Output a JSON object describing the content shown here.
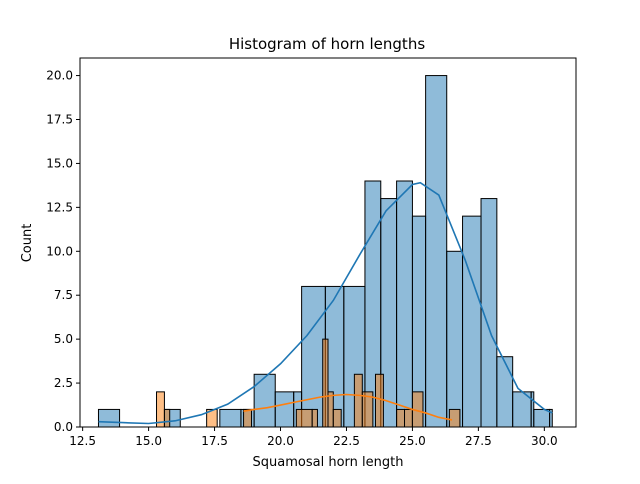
{
  "chart_data": {
    "type": "bar",
    "title": "Histogram of horn lengths",
    "xlabel": "Squamosal horn length",
    "ylabel": "Count",
    "xlim": [
      12.4,
      31.2
    ],
    "ylim": [
      0,
      21
    ],
    "xticks": [
      "12.5",
      "15.0",
      "17.5",
      "20.0",
      "22.5",
      "25.0",
      "27.5",
      "30.0"
    ],
    "yticks": [
      "0.0",
      "2.5",
      "5.0",
      "7.5",
      "10.0",
      "12.5",
      "15.0",
      "17.5",
      "20.0"
    ],
    "grid": false,
    "legend": "none",
    "series": [
      {
        "color": "#1f77b4",
        "bins": [
          {
            "x0": 13.1,
            "x1": 13.9,
            "count": 1
          },
          {
            "x0": 15.6,
            "x1": 16.2,
            "count": 1
          },
          {
            "x0": 17.7,
            "x1": 18.5,
            "count": 1
          },
          {
            "x0": 18.5,
            "x1": 19.0,
            "count": 1
          },
          {
            "x0": 19.0,
            "x1": 19.8,
            "count": 3
          },
          {
            "x0": 19.8,
            "x1": 20.5,
            "count": 2
          },
          {
            "x0": 20.5,
            "x1": 20.8,
            "count": 2
          },
          {
            "x0": 20.8,
            "x1": 21.7,
            "count": 8
          },
          {
            "x0": 21.7,
            "x1": 22.4,
            "count": 8
          },
          {
            "x0": 22.4,
            "x1": 23.2,
            "count": 8
          },
          {
            "x0": 23.2,
            "x1": 23.8,
            "count": 14
          },
          {
            "x0": 23.8,
            "x1": 24.4,
            "count": 13
          },
          {
            "x0": 24.4,
            "x1": 25.0,
            "count": 14
          },
          {
            "x0": 25.0,
            "x1": 25.5,
            "count": 12
          },
          {
            "x0": 25.5,
            "x1": 26.3,
            "count": 20
          },
          {
            "x0": 26.3,
            "x1": 26.9,
            "count": 10
          },
          {
            "x0": 26.9,
            "x1": 27.6,
            "count": 12
          },
          {
            "x0": 27.6,
            "x1": 28.2,
            "count": 13
          },
          {
            "x0": 28.2,
            "x1": 28.8,
            "count": 4
          },
          {
            "x0": 28.8,
            "x1": 29.5,
            "count": 2
          },
          {
            "x0": 29.5,
            "x1": 29.6,
            "count": 2
          },
          {
            "x0": 29.6,
            "x1": 30.2,
            "count": 1
          },
          {
            "x0": 30.2,
            "x1": 30.3,
            "count": 1
          }
        ],
        "kde": {
          "x": [
            13.1,
            14.0,
            15.0,
            16.0,
            17.0,
            18.0,
            19.0,
            20.0,
            21.0,
            22.0,
            23.0,
            24.0,
            25.0,
            25.3,
            26.0,
            27.0,
            28.0,
            29.0,
            30.0,
            30.3
          ],
          "y": [
            0.3,
            0.25,
            0.2,
            0.35,
            0.7,
            1.3,
            2.3,
            3.6,
            5.2,
            7.2,
            9.8,
            12.3,
            13.8,
            13.9,
            13.2,
            9.5,
            5.2,
            2.2,
            1.0,
            0.8
          ]
        }
      },
      {
        "color": "#ff7f0e",
        "bins": [
          {
            "x0": 15.3,
            "x1": 15.6,
            "count": 2
          },
          {
            "x0": 15.6,
            "x1": 15.8,
            "count": 1
          },
          {
            "x0": 17.2,
            "x1": 17.6,
            "count": 1
          },
          {
            "x0": 18.6,
            "x1": 18.9,
            "count": 1
          },
          {
            "x0": 20.6,
            "x1": 21.2,
            "count": 1
          },
          {
            "x0": 21.2,
            "x1": 21.4,
            "count": 1
          },
          {
            "x0": 21.6,
            "x1": 21.8,
            "count": 5
          },
          {
            "x0": 21.8,
            "x1": 22.0,
            "count": 2
          },
          {
            "x0": 22.0,
            "x1": 22.3,
            "count": 1
          },
          {
            "x0": 22.8,
            "x1": 23.1,
            "count": 3
          },
          {
            "x0": 23.1,
            "x1": 23.5,
            "count": 2
          },
          {
            "x0": 23.6,
            "x1": 23.9,
            "count": 3
          },
          {
            "x0": 24.4,
            "x1": 24.7,
            "count": 1
          },
          {
            "x0": 24.7,
            "x1": 25.0,
            "count": 1
          },
          {
            "x0": 25.0,
            "x1": 25.4,
            "count": 2
          },
          {
            "x0": 26.4,
            "x1": 26.8,
            "count": 1
          }
        ],
        "kde": {
          "x": [
            18.6,
            19.0,
            19.5,
            20.0,
            20.5,
            21.0,
            21.5,
            22.0,
            22.5,
            23.0,
            23.5,
            24.0,
            24.5,
            25.0,
            25.5,
            26.0,
            26.5
          ],
          "y": [
            0.9,
            1.0,
            1.1,
            1.25,
            1.4,
            1.55,
            1.7,
            1.8,
            1.85,
            1.8,
            1.7,
            1.5,
            1.25,
            1.0,
            0.8,
            0.55,
            0.4
          ]
        }
      }
    ]
  }
}
